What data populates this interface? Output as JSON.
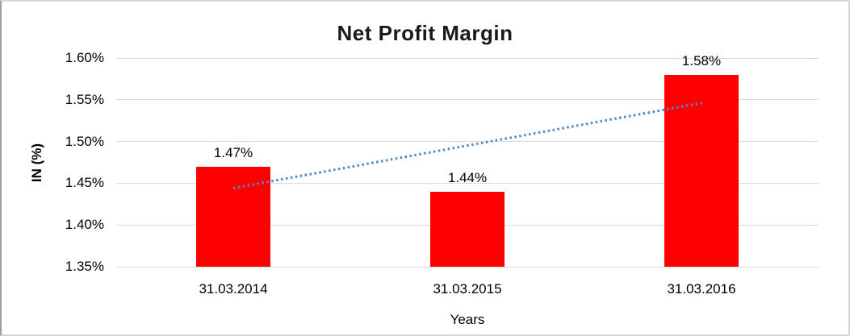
{
  "window": {
    "background": "#FFFFFF",
    "border_color": "#D5D5D5"
  },
  "chart_data": {
    "type": "bar",
    "title": "Net Profit Margin",
    "categories": [
      "31.03.2014",
      "31.03.2015",
      "31.03.2016"
    ],
    "values": [
      1.47,
      1.44,
      1.58
    ],
    "data_labels": [
      "1.47%",
      "1.44%",
      "1.58%"
    ],
    "xlabel": "Years",
    "ylabel": "IN (%)",
    "ylim": [
      1.35,
      1.6
    ],
    "yticks": [
      1.35,
      1.4,
      1.45,
      1.5,
      1.55,
      1.6
    ],
    "ytick_labels": [
      "1.35%",
      "1.40%",
      "1.45%",
      "1.50%",
      "1.55%",
      "1.60%"
    ],
    "grid": true,
    "legend": "none",
    "bar_color": "#FF0000",
    "gridline_color": "#D9D9D9",
    "text_color": "#000000",
    "trendline": {
      "style": "dotted",
      "color": "#4F87C7",
      "start_value": 1.444,
      "end_value": 1.546
    }
  }
}
